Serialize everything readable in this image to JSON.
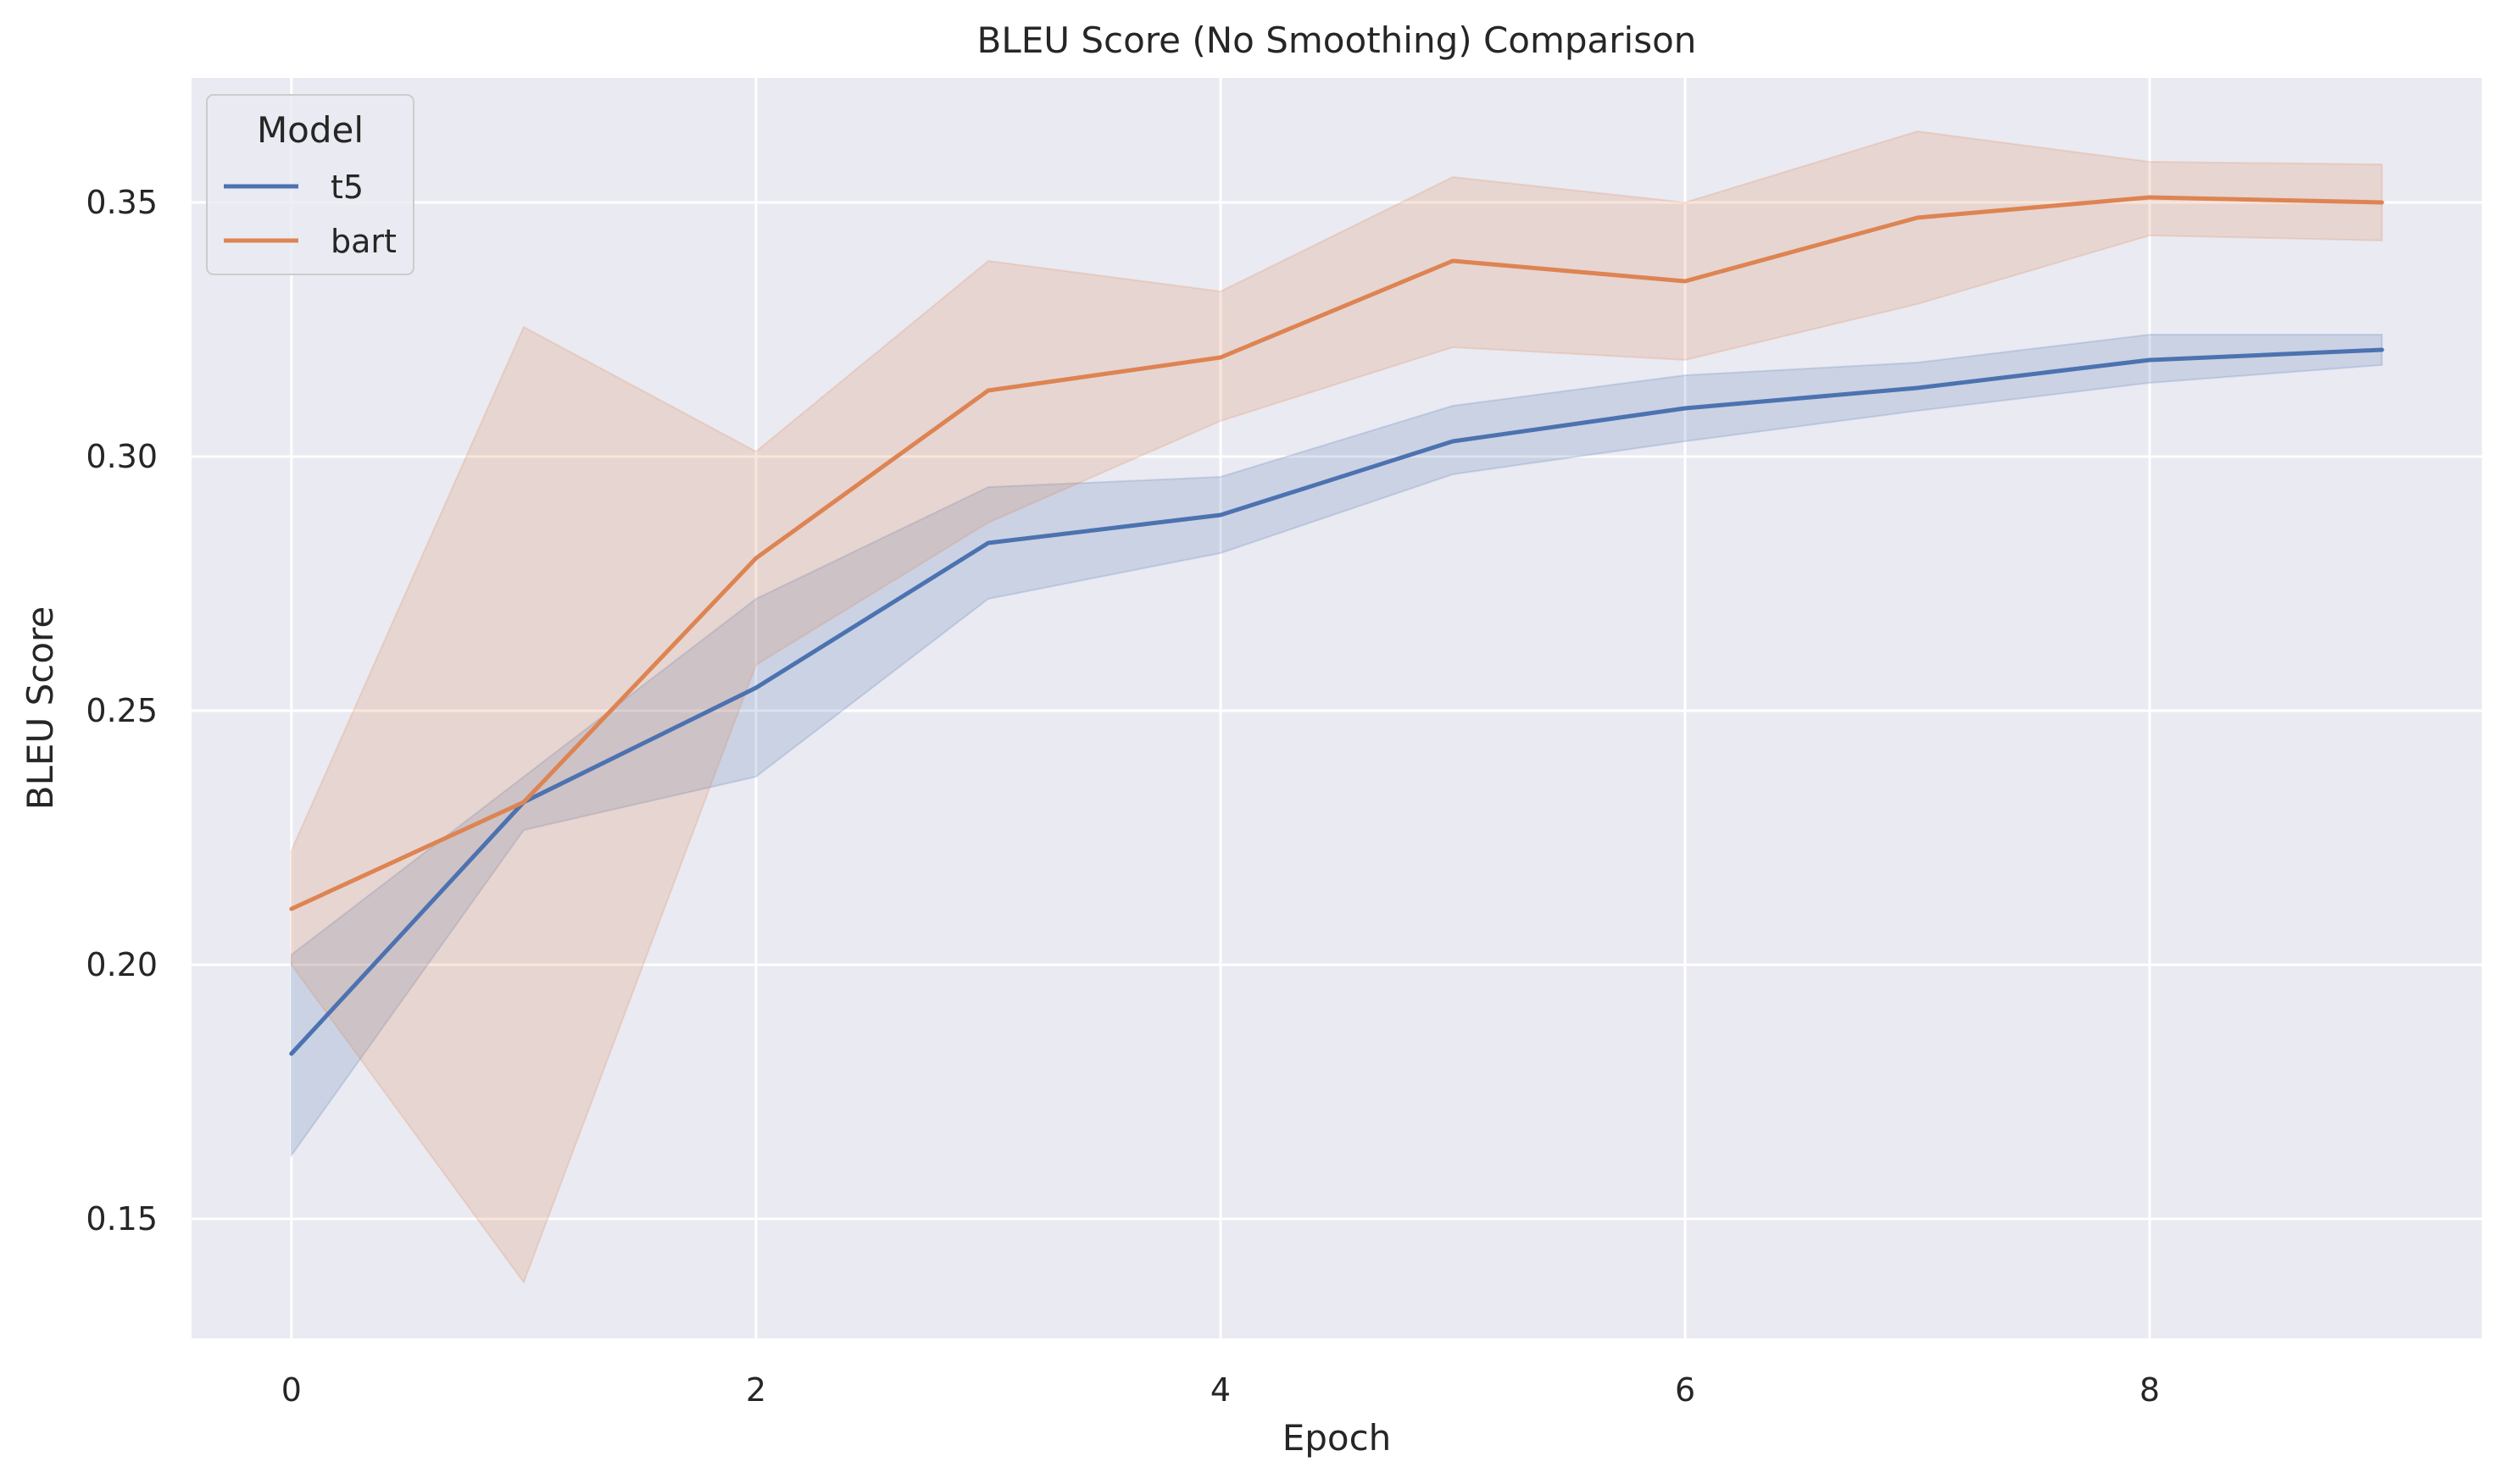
{
  "chart_data": {
    "type": "line",
    "title": "BLEU Score (No Smoothing) Comparison",
    "xlabel": "Epoch",
    "ylabel": "BLEU Score",
    "xlim": [
      -0.43,
      9.43
    ],
    "ylim": [
      0.1265,
      0.3745
    ],
    "xticks": [
      0,
      2,
      4,
      6,
      8
    ],
    "yticks": [
      0.15,
      0.2,
      0.25,
      0.3,
      0.35
    ],
    "xtick_labels": [
      "0",
      "2",
      "4",
      "6",
      "8"
    ],
    "ytick_labels": [
      "0.15",
      "0.20",
      "0.25",
      "0.30",
      "0.35"
    ],
    "grid": true,
    "legend": {
      "title": "Model",
      "placement": "top-left"
    },
    "x": [
      0,
      1,
      2,
      3,
      4,
      5,
      6,
      7,
      8,
      9
    ],
    "series": [
      {
        "name": "t5",
        "color": "#4c72b0",
        "values": [
          0.1825,
          0.232,
          0.2545,
          0.283,
          0.2885,
          0.303,
          0.3095,
          0.3135,
          0.319,
          0.321
        ],
        "ci_lower": [
          0.1625,
          0.2265,
          0.237,
          0.272,
          0.281,
          0.2965,
          0.303,
          0.309,
          0.3145,
          0.318
        ],
        "ci_upper": [
          0.202,
          0.237,
          0.272,
          0.294,
          0.296,
          0.31,
          0.316,
          0.3185,
          0.324,
          0.324
        ]
      },
      {
        "name": "bart",
        "color": "#dd8452",
        "values": [
          0.211,
          0.232,
          0.28,
          0.313,
          0.3195,
          0.3385,
          0.3345,
          0.347,
          0.351,
          0.35
        ],
        "ci_lower": [
          0.2,
          0.1375,
          0.259,
          0.287,
          0.307,
          0.3215,
          0.319,
          0.33,
          0.3435,
          0.3425
        ],
        "ci_upper": [
          0.2225,
          0.3255,
          0.301,
          0.3385,
          0.3325,
          0.355,
          0.35,
          0.364,
          0.358,
          0.3575
        ]
      }
    ]
  }
}
